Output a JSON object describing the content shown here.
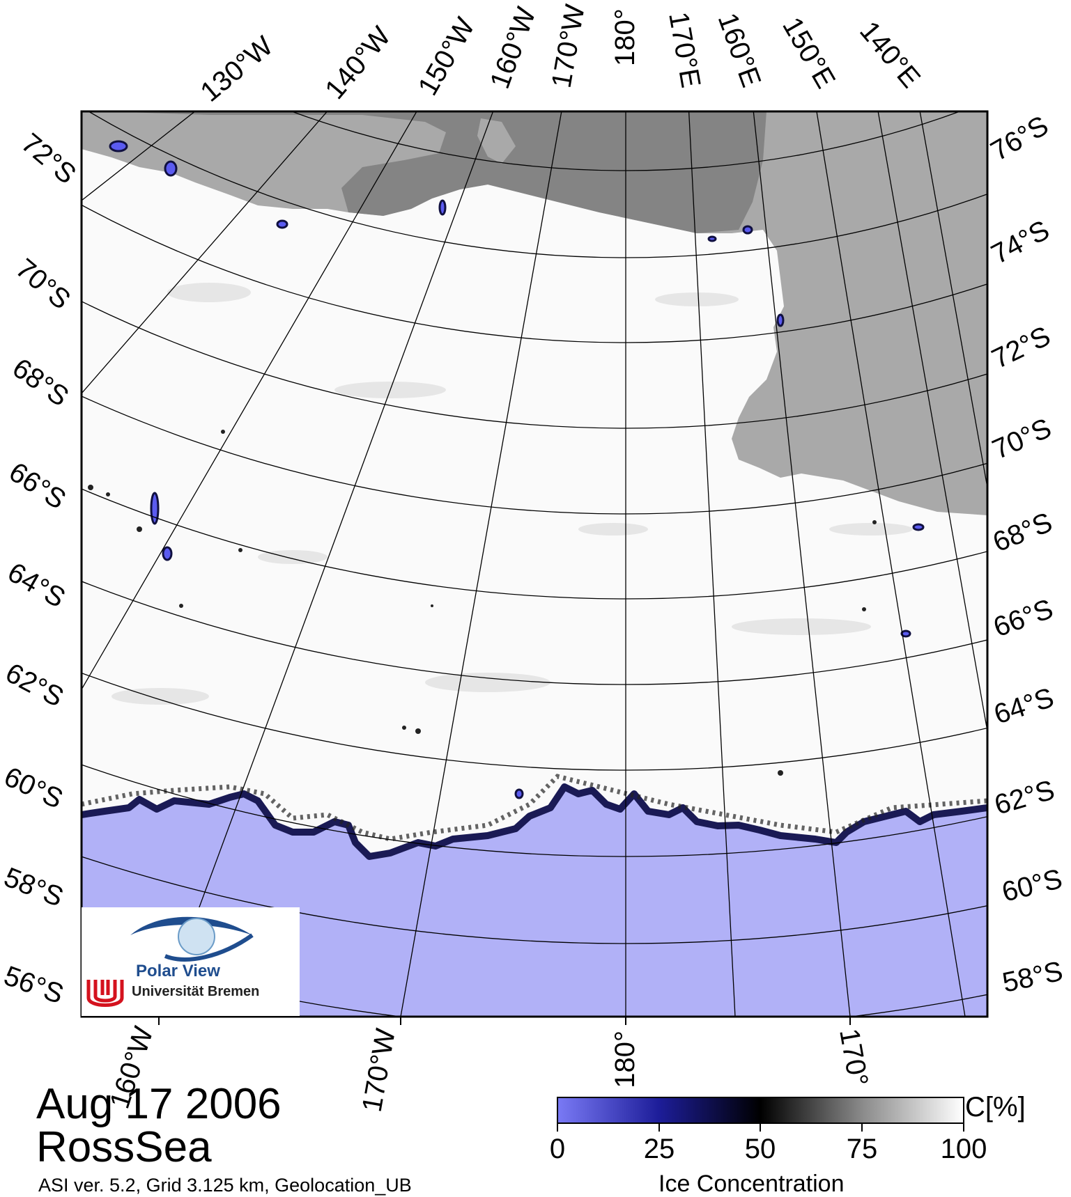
{
  "map": {
    "date": "Aug 17 2006",
    "region": "RossSea",
    "info": "ASI ver. 5.2,  Grid 3.125 km, Geolocation_UB",
    "top_lon_labels": [
      "130°W",
      "140°W",
      "150°W",
      "160°W",
      "170°W",
      "180°",
      "170°E",
      "160°E",
      "150°E",
      "140°E"
    ],
    "left_lat_labels": [
      "72°S",
      "70°S",
      "68°S",
      "66°S",
      "64°S",
      "62°S",
      "60°S",
      "58°S",
      "56°S"
    ],
    "right_lat_labels": [
      "76°S",
      "74°S",
      "72°S",
      "70°S",
      "68°S",
      "66°S",
      "64°S",
      "62°S",
      "60°S",
      "58°S"
    ],
    "bottom_lon_labels": [
      "160°W",
      "170°W",
      "180°",
      "170°"
    ]
  },
  "colorbar": {
    "title": "Ice Concentration",
    "unit": "C[%]",
    "ticks": [
      "0",
      "25",
      "50",
      "75",
      "100"
    ]
  },
  "logo": {
    "name": "Polar View",
    "institution": "Universität Bremen"
  },
  "colors": {
    "open_water": "#b1b1f7",
    "land": "#a9a9a9",
    "ice_shelf": "#848484",
    "ice_low": "#5b5bf0",
    "ice_mid": "#000000",
    "ice_full": "#ffffff",
    "logo_blue": "#1f4d8e",
    "logo_red": "#d4121e"
  }
}
